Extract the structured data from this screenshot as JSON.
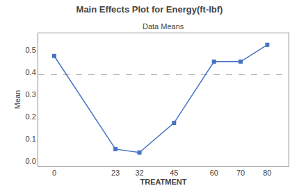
{
  "chart_data": {
    "type": "line",
    "title": "Main Effects Plot for Energy(ft-lbf)",
    "subtitle": "Data Means",
    "xlabel": "TREATMENT",
    "ylabel": "Mean",
    "x": [
      0,
      23,
      32,
      45,
      60,
      70,
      80
    ],
    "values": [
      0.473,
      0.055,
      0.04,
      0.173,
      0.448,
      0.448,
      0.523
    ],
    "color": "#4472C4",
    "marker": "square",
    "line_style": "solid",
    "reference_line": {
      "y": 0.39,
      "color": "#B0B0B0",
      "line_style": "dashed"
    },
    "xlim": [
      -6,
      88
    ],
    "xticks": [
      0,
      23,
      32,
      45,
      60,
      70,
      80
    ],
    "ylim": [
      -0.02,
      0.575
    ],
    "yticks": [
      {
        "value": 0.0,
        "label": "0.0"
      },
      0.1,
      0.2,
      0.3,
      0.4,
      0.5
    ],
    "grid": false
  }
}
